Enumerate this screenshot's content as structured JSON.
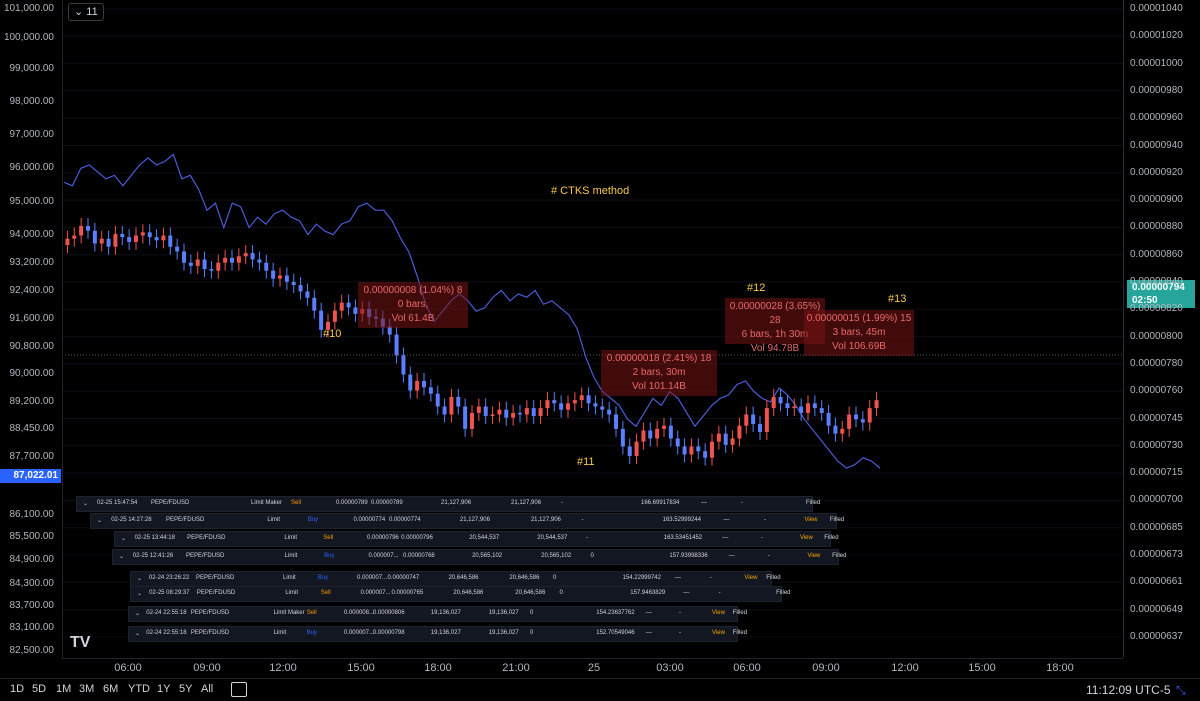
{
  "legend": {
    "interval": "11",
    "chevron": "⌄"
  },
  "left_axis": [
    "101,000.00",
    "100,000.00",
    "99,000.00",
    "98,000.00",
    "97,000.00",
    "96,000.00",
    "95,000.00",
    "94,000.00",
    "93,200.00",
    "92,400.00",
    "91,600.00",
    "90,800.00",
    "90,000.00",
    "89,200.00",
    "88,450.00",
    "87,700.00",
    "86,100.00",
    "85,500.00",
    "84,900.00",
    "84,300.00",
    "83,700.00",
    "83,100.00",
    "82,500.00"
  ],
  "left_price_tag": "87,022.01",
  "right_axis": [
    "0.00001040",
    "0.00001020",
    "0.00001000",
    "0.00000980",
    "0.00000960",
    "0.00000940",
    "0.00000920",
    "0.00000900",
    "0.00000880",
    "0.00000860",
    "0.00000840",
    "0.00000820",
    "0.00000800",
    "0.00000780",
    "0.00000760",
    "0.00000745",
    "0.00000730",
    "0.00000715",
    "0.00000700",
    "0.00000685",
    "0.00000673",
    "0.00000661",
    "0.00000649",
    "0.00000637"
  ],
  "price_tag": {
    "price": "0.00000794",
    "countdown": "02:50"
  },
  "time_axis": [
    "06:00",
    "09:00",
    "12:00",
    "15:00",
    "18:00",
    "21:00",
    "25",
    "03:00",
    "06:00",
    "09:00",
    "12:00",
    "15:00",
    "18:00"
  ],
  "annotations": {
    "method": "# CTKS method",
    "n10": "#10",
    "n11": "#11",
    "n12": "#12",
    "n13": "#13"
  },
  "measures": [
    {
      "l1": "0.00000008 (1.04%) 8",
      "l2": "0 bars,",
      "l3": "Vol 61.4B"
    },
    {
      "l1": "0.00000018 (2.41%) 18",
      "l2": "2 bars, 30m",
      "l3": "Vol 101.14B"
    },
    {
      "l1": "0.00000028 (3.65%) 28",
      "l2": "6 bars, 1h 30m",
      "l3": "Vol 94.78B"
    },
    {
      "l1": "0.00000015 (1.99%) 15",
      "l2": "3 bars, 45m",
      "l3": "Vol 106.69B"
    }
  ],
  "orders": [
    {
      "time": "02-25 15:47:54",
      "pair": "PEPE/FDUSD",
      "type": "Limit Maker",
      "side": "Sell",
      "price": "0.00000789",
      "avg": "0.00000789",
      "amount": "21,127,906",
      "filled": "21,127,906",
      "dash": "-",
      "total": "166.69917834",
      "dash2": "—",
      "dash3": "-",
      "view": "",
      "status": "Filled"
    },
    {
      "time": "02-25 14:27:28",
      "pair": "PEPE/FDUSD",
      "type": "Limit",
      "side": "Buy",
      "price": "0.00000774",
      "avg": "0.00000774",
      "amount": "21,127,906",
      "filled": "21,127,906",
      "dash": "-",
      "total": "163.52999244",
      "dash2": "—",
      "dash3": "-",
      "view": "View",
      "status": "Filled"
    },
    {
      "time": "02-25 13:44:18",
      "pair": "PEPE/FDUSD",
      "type": "Limit",
      "side": "Sell",
      "price": "0.00000796",
      "avg": "0.00000796",
      "amount": "20,544,537",
      "filled": "20,544,537",
      "dash": "-",
      "total": "163.53451452",
      "dash2": "—",
      "dash3": "-",
      "view": "View",
      "status": "Filled"
    },
    {
      "time": "02-25 12:41:26",
      "pair": "PEPE/FDUSD",
      "type": "Limit",
      "side": "Buy",
      "price": "0.000007...",
      "avg": "0.00000768",
      "amount": "20,565,102",
      "filled": "20,565,102",
      "dash": "0",
      "total": "157.93998336",
      "dash2": "—",
      "dash3": "-",
      "view": "View",
      "status": "Filled"
    },
    {
      "time": "02-24 23:26:22",
      "pair": "PEPE/FDUSD",
      "type": "Limit",
      "side": "Buy",
      "price": "0.000007...",
      "avg": "0.00000747",
      "amount": "20,646,586",
      "filled": "20,646,586",
      "dash": "0",
      "total": "154.22999742",
      "dash2": "—",
      "dash3": "-",
      "view": "View",
      "status": "Filled"
    },
    {
      "time": "02-25 08:29:37",
      "pair": "PEPE/FDUSD",
      "type": "Limit",
      "side": "Sell",
      "price": "0.000007...",
      "avg": "0.00000765",
      "amount": "20,646,586",
      "filled": "20,646,586",
      "dash": "0",
      "total": "157.9463829",
      "dash2": "—",
      "dash3": "-",
      "view": "",
      "status": "Filled"
    },
    {
      "time": "02-24 22:55:18",
      "pair": "PEPE/FDUSD",
      "type": "Limit Maker",
      "side": "Sell",
      "price": "0.000008...",
      "avg": "0.00000806",
      "amount": "19,136,027",
      "filled": "19,136,027",
      "dash": "0",
      "total": "154.23637762",
      "dash2": "—",
      "dash3": "-",
      "view": "View",
      "status": "Filled"
    },
    {
      "time": "02-24 22:55:18",
      "pair": "PEPE/FDUSD",
      "type": "Limit",
      "side": "Buy",
      "price": "0.000007...",
      "avg": "0.00000798",
      "amount": "19,136,027",
      "filled": "19,136,027",
      "dash": "0",
      "total": "152.70549046",
      "dash2": "—",
      "dash3": "-",
      "view": "View",
      "status": "Filled"
    }
  ],
  "ranges": [
    "1D",
    "5D",
    "1M",
    "3M",
    "6M",
    "YTD",
    "1Y",
    "5Y",
    "All"
  ],
  "clock": "11:12:09 UTC-5",
  "logo": "TV",
  "axis_buttons": {
    "left": "Z",
    "right": "A"
  },
  "colors": {
    "up": "#ef5350",
    "down": "#5b7fff",
    "btc_line": "#4a5bd6",
    "accent": "#f7c948"
  },
  "chart_data": {
    "type": "line",
    "series": [],
    "yrange_left": [
      82500,
      101000
    ],
    "yrange_right": [
      6.37e-06,
      1.04e-05
    ],
    "btc_line_values": [
      95200,
      95100,
      95600,
      95700,
      95500,
      95300,
      95400,
      95100,
      95400,
      95700,
      95900,
      95700,
      95800,
      96000,
      95300,
      95400,
      95000,
      94400,
      94600,
      93900,
      94600,
      94500,
      93900,
      94200,
      94000,
      94300,
      94400,
      94200,
      94100,
      93700,
      94000,
      93800,
      93700,
      94000,
      94100,
      94500,
      94600,
      94400,
      94400,
      94100,
      93600,
      93200,
      92500,
      91700,
      91200,
      91500,
      91800,
      92000,
      91800,
      91500,
      91600,
      91900,
      92100,
      91800,
      92000,
      91900,
      92100,
      91700,
      91800,
      91600,
      91400,
      91000,
      90200,
      89600,
      89200,
      89000,
      88800,
      88400,
      88200,
      88600,
      89000,
      88800,
      89200,
      89000,
      88600,
      88200,
      88500,
      88800,
      89000,
      89100,
      89400,
      89500,
      89200,
      89000,
      88900,
      89300,
      89100,
      88800,
      88400,
      88100,
      87800,
      87500,
      87200,
      87000,
      87100,
      87300,
      87200,
      87000
    ],
    "pepe_close": [
      8.95e-06,
      8.97e-06,
      9.03e-06,
      9e-06,
      8.92e-06,
      8.95e-06,
      8.9e-06,
      8.98e-06,
      8.96e-06,
      8.93e-06,
      8.97e-06,
      8.99e-06,
      8.96e-06,
      8.94e-06,
      8.97e-06,
      8.9e-06,
      8.87e-06,
      8.8e-06,
      8.78e-06,
      8.82e-06,
      8.76e-06,
      8.75e-06,
      8.8e-06,
      8.83e-06,
      8.8e-06,
      8.84e-06,
      8.86e-06,
      8.82e-06,
      8.8e-06,
      8.75e-06,
      8.7e-06,
      8.72e-06,
      8.68e-06,
      8.66e-06,
      8.62e-06,
      8.58e-06,
      8.5e-06,
      8.38e-06,
      8.43e-06,
      8.5e-06,
      8.55e-06,
      8.52e-06,
      8.48e-06,
      8.51e-06,
      8.46e-06,
      8.45e-06,
      8.4e-06,
      8.35e-06,
      8.22e-06,
      8.1e-06,
      8e-06,
      8.06e-06,
      8.02e-06,
      7.98e-06,
      7.9e-06,
      7.85e-06,
      7.96e-06,
      7.9e-06,
      7.76e-06,
      7.86e-06,
      7.9e-06,
      7.84e-06,
      7.85e-06,
      7.88e-06,
      7.83e-06,
      7.86e-06,
      7.85e-06,
      7.89e-06,
      7.84e-06,
      7.89e-06,
      7.94e-06,
      7.92e-06,
      7.88e-06,
      7.92e-06,
      7.94e-06,
      7.97e-06,
      7.92e-06,
      7.9e-06,
      7.88e-06,
      7.85e-06,
      7.76e-06,
      7.65e-06,
      7.59e-06,
      7.68e-06,
      7.75e-06,
      7.7e-06,
      7.76e-06,
      7.78e-06,
      7.7e-06,
      7.65e-06,
      7.6e-06,
      7.65e-06,
      7.62e-06,
      7.58e-06,
      7.68e-06,
      7.73e-06,
      7.66e-06,
      7.7e-06,
      7.78e-06,
      7.85e-06,
      7.79e-06,
      7.74e-06,
      7.89e-06,
      7.96e-06,
      7.92e-06,
      7.89e-06,
      7.9e-06,
      7.86e-06,
      7.92e-06,
      7.89e-06,
      7.86e-06,
      7.78e-06,
      7.73e-06,
      7.76e-06,
      7.85e-06,
      7.82e-06,
      7.8e-06,
      7.89e-06,
      7.94e-06
    ]
  }
}
